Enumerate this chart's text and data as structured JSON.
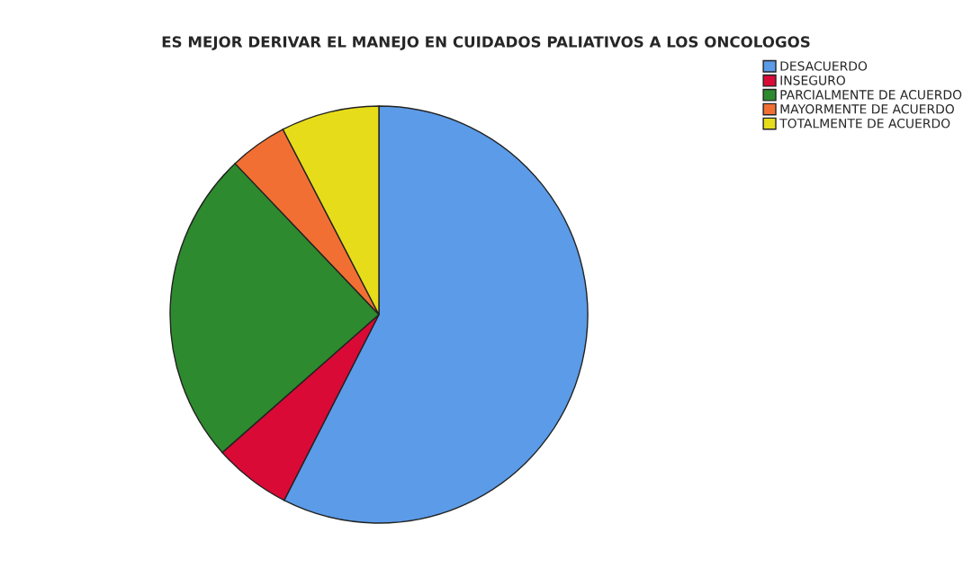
{
  "chart_data": {
    "type": "pie",
    "title": "ES MEJOR DERIVAR EL MANEJO EN CUIDADOS PALIATIVOS A LOS ONCOLOGOS",
    "categories": [
      "DESACUERDO",
      "INSEGURO",
      "PARCIALMENTE DE ACUERDO",
      "MAYORMENTE DE ACUERDO",
      "TOTALMENTE DE ACUERDO"
    ],
    "values": [
      57.5,
      6.0,
      24.4,
      4.5,
      7.6
    ],
    "colors": [
      "#5b9be8",
      "#d90a36",
      "#2e8a2e",
      "#f26f33",
      "#e6dc1a"
    ],
    "legend": "top right"
  }
}
